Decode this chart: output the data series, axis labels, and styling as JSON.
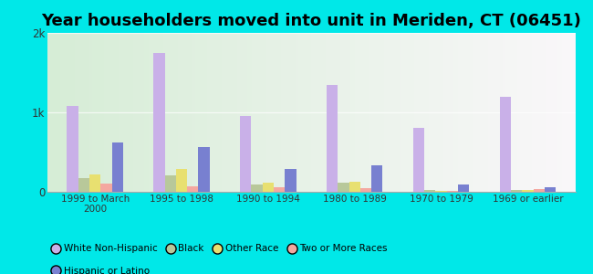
{
  "title": "Year householders moved into unit in Meriden, CT (06451)",
  "categories": [
    "1999 to March\n2000",
    "1995 to 1998",
    "1990 to 1994",
    "1980 to 1989",
    "1970 to 1979",
    "1969 or earlier"
  ],
  "series": {
    "White Non-Hispanic": [
      1080,
      1750,
      950,
      1350,
      800,
      1200
    ],
    "Black": [
      170,
      210,
      90,
      120,
      20,
      20
    ],
    "Other Race": [
      220,
      290,
      110,
      130,
      15,
      20
    ],
    "Two or More Races": [
      100,
      70,
      60,
      50,
      10,
      30
    ],
    "Hispanic or Latino": [
      620,
      560,
      290,
      330,
      90,
      55
    ]
  },
  "colors": {
    "White Non-Hispanic": "#c9b0e8",
    "Black": "#b8c89a",
    "Other Race": "#e8e070",
    "Two or More Races": "#f4a8a0",
    "Hispanic or Latino": "#7880d0"
  },
  "ylim": [
    0,
    2000
  ],
  "yticks": [
    0,
    1000,
    2000
  ],
  "ytick_labels": [
    "0",
    "1k",
    "2k"
  ],
  "background_color": "#00e8e8",
  "bar_width": 0.13,
  "title_fontsize": 13,
  "legend_order": [
    "White Non-Hispanic",
    "Black",
    "Other Race",
    "Two or More Races",
    "Hispanic or Latino"
  ]
}
